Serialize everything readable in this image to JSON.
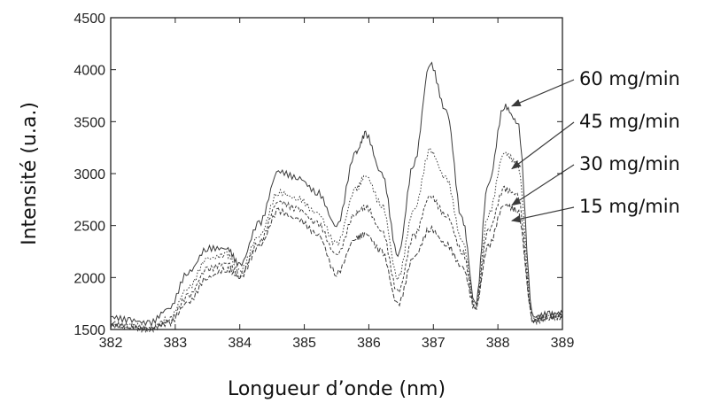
{
  "chart_data": {
    "type": "line",
    "title": "",
    "xlabel": "Longueur d’onde (nm)",
    "ylabel": "Intensité (u.a.)",
    "xlim": [
      382,
      389
    ],
    "ylim": [
      1500,
      4500
    ],
    "xticks": [
      "382",
      "383",
      "384",
      "385",
      "386",
      "387",
      "388",
      "389"
    ],
    "yticks": [
      "1500",
      "2000",
      "2500",
      "3000",
      "3500",
      "4000",
      "4500"
    ],
    "grid": false,
    "x": [
      382.0,
      382.3,
      382.6,
      382.9,
      383.2,
      383.5,
      383.8,
      384.0,
      384.3,
      384.6,
      384.9,
      385.2,
      385.5,
      385.8,
      385.95,
      386.2,
      386.45,
      386.7,
      386.95,
      387.2,
      387.45,
      387.65,
      387.85,
      388.1,
      388.3,
      388.55,
      388.8,
      389.0
    ],
    "series": [
      {
        "name": "60 mg/min",
        "values": [
          1620,
          1590,
          1560,
          1700,
          2050,
          2280,
          2280,
          2120,
          2520,
          3020,
          2960,
          2820,
          2500,
          3200,
          3380,
          3000,
          2220,
          3100,
          4060,
          3600,
          2550,
          1740,
          2900,
          3650,
          3500,
          1620,
          1650,
          1660
        ]
      },
      {
        "name": "45 mg/min",
        "values": [
          1560,
          1540,
          1510,
          1600,
          1900,
          2180,
          2220,
          2060,
          2400,
          2820,
          2760,
          2620,
          2320,
          2850,
          2980,
          2700,
          2000,
          2650,
          3220,
          2950,
          2350,
          1720,
          2600,
          3200,
          3100,
          1600,
          1630,
          1640
        ]
      },
      {
        "name": "30 mg/min",
        "values": [
          1550,
          1530,
          1500,
          1580,
          1820,
          2080,
          2140,
          2020,
          2340,
          2730,
          2660,
          2520,
          2220,
          2620,
          2680,
          2450,
          1860,
          2400,
          2780,
          2600,
          2250,
          1710,
          2450,
          2850,
          2800,
          1590,
          1620,
          1630
        ]
      },
      {
        "name": "15 mg/min",
        "values": [
          1540,
          1520,
          1500,
          1560,
          1760,
          2000,
          2080,
          2000,
          2300,
          2640,
          2560,
          2420,
          2040,
          2380,
          2420,
          2250,
          1740,
          2200,
          2470,
          2320,
          2100,
          1700,
          2300,
          2700,
          2650,
          1580,
          1610,
          1620
        ]
      }
    ],
    "annotations": [
      "60 mg/min",
      "45 mg/min",
      "30 mg/min",
      "15 mg/min"
    ],
    "colors": {
      "line": "#3a3a3a",
      "axis": "#222222",
      "text": "#111111"
    }
  }
}
